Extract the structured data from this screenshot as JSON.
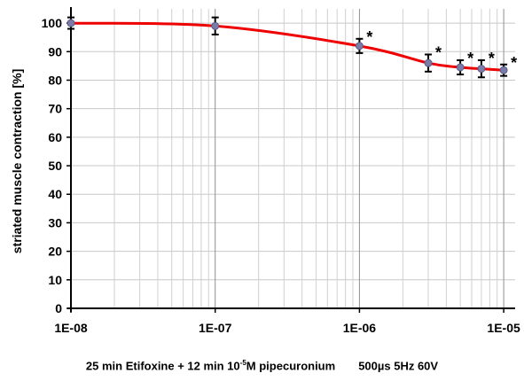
{
  "chart_data": {
    "type": "line",
    "title": "",
    "ylabel": "striated muscle contraction [%]",
    "xlabel_parts": {
      "pre": "25 min Etifoxine + 12 min 10",
      "sup": "-5",
      "post": "M pipecuronium",
      "params": "500µs 5Hz 60V"
    },
    "x_scale": "log",
    "xlim": [
      1e-08,
      1.2e-05
    ],
    "ylim": [
      0,
      105
    ],
    "y_ticks": [
      0,
      10,
      20,
      30,
      40,
      50,
      60,
      70,
      80,
      90,
      100
    ],
    "x_ticks": [
      {
        "value": 1e-08,
        "label": "1E-08"
      },
      {
        "value": 1e-07,
        "label": "1E-07"
      },
      {
        "value": 1e-06,
        "label": "1E-06"
      },
      {
        "value": 1e-05,
        "label": "1E-05"
      }
    ],
    "grid": true,
    "series": [
      {
        "color": "#ee0000",
        "marker_color": "#7b7ba8",
        "points": [
          {
            "x": 1e-08,
            "y": 100,
            "err": 2,
            "sig": ""
          },
          {
            "x": 1e-07,
            "y": 99,
            "err": 3,
            "sig": ""
          },
          {
            "x": 1e-06,
            "y": 92,
            "err": 2.5,
            "sig": "*"
          },
          {
            "x": 3e-06,
            "y": 86,
            "err": 3,
            "sig": "*"
          },
          {
            "x": 5e-06,
            "y": 84.5,
            "err": 2.5,
            "sig": "*"
          },
          {
            "x": 7e-06,
            "y": 84,
            "err": 3,
            "sig": "*"
          },
          {
            "x": 1e-05,
            "y": 83.5,
            "err": 2,
            "sig": "*"
          }
        ]
      }
    ]
  }
}
